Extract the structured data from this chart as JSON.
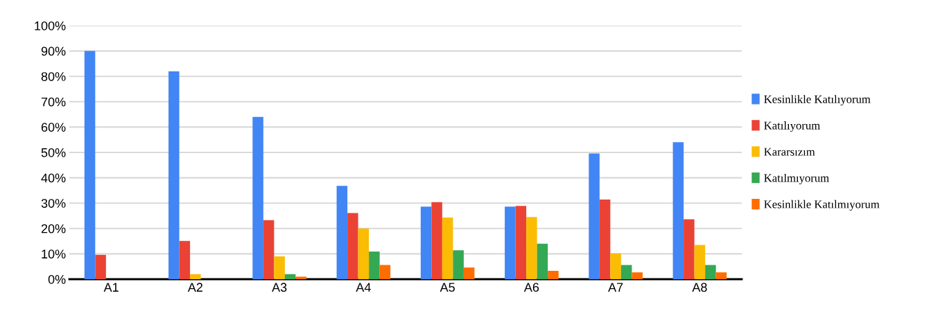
{
  "chart_data": {
    "type": "bar",
    "categories": [
      "A1",
      "A2",
      "A3",
      "A4",
      "A5",
      "A6",
      "A7",
      "A8"
    ],
    "series": [
      {
        "name": "Kesinlikle Katılıyorum",
        "color": "#4285f4",
        "values": [
          90,
          82,
          64,
          36.8,
          28.6,
          28.6,
          49.6,
          54
        ]
      },
      {
        "name": "Katılıyorum",
        "color": "#ea4335",
        "values": [
          9.6,
          15.1,
          23.3,
          26.1,
          30.4,
          28.9,
          31.4,
          23.6
        ]
      },
      {
        "name": "Kararsızım",
        "color": "#fbbc04",
        "values": [
          0,
          2,
          9,
          20,
          24.3,
          24.5,
          10.2,
          13.5
        ]
      },
      {
        "name": "Katılmıyorum",
        "color": "#34a853",
        "values": [
          0,
          0,
          2,
          10.9,
          11.4,
          14,
          5.6,
          5.6
        ]
      },
      {
        "name": "Kesinlikle Katılmıyorum",
        "color": "#ff6d01",
        "values": [
          0,
          0,
          1,
          5.6,
          4.6,
          3.3,
          2.7,
          2.7
        ]
      }
    ],
    "ylim": [
      0,
      100
    ],
    "yticks": [
      {
        "value": 0,
        "label": "0%"
      },
      {
        "value": 10,
        "label": "10%"
      },
      {
        "value": 20,
        "label": "20%"
      },
      {
        "value": 30,
        "label": "30%"
      },
      {
        "value": 40,
        "label": "40%"
      },
      {
        "value": 50,
        "label": "50%"
      },
      {
        "value": 60,
        "label": "60%"
      },
      {
        "value": 70,
        "label": "70%"
      },
      {
        "value": 80,
        "label": "80%"
      },
      {
        "value": 90,
        "label": "90%"
      },
      {
        "value": 100,
        "label": "100%"
      }
    ],
    "grid": "y",
    "legend": "right"
  }
}
